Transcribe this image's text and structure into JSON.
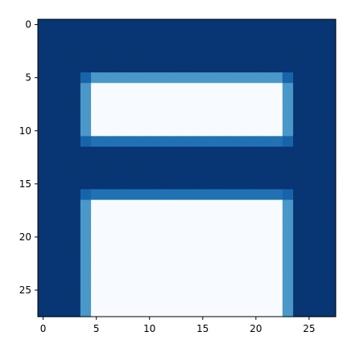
{
  "chart_data": {
    "type": "heatmap",
    "title": "",
    "xlabel": "",
    "ylabel": "",
    "colormap": "Blues",
    "rows": 28,
    "cols": 28,
    "xlim": [
      -0.5,
      27.5
    ],
    "ylim": [
      27.5,
      -0.5
    ],
    "x_ticks": [
      0,
      5,
      10,
      15,
      20,
      25
    ],
    "y_ticks": [
      0,
      5,
      10,
      15,
      20,
      25
    ],
    "x_tick_labels": [
      "0",
      "5",
      "10",
      "15",
      "20",
      "25"
    ],
    "y_tick_labels": [
      "0",
      "5",
      "10",
      "15",
      "20",
      "25"
    ],
    "value_range": [
      0,
      1
    ],
    "background_value": 0.98,
    "regions": [
      {
        "rows": [
          5,
          5
        ],
        "cols": [
          4,
          4
        ],
        "value": 0.8
      },
      {
        "rows": [
          5,
          5
        ],
        "cols": [
          5,
          22
        ],
        "value": 0.6
      },
      {
        "rows": [
          5,
          5
        ],
        "cols": [
          23,
          23
        ],
        "value": 0.8
      },
      {
        "rows": [
          6,
          10
        ],
        "cols": [
          4,
          4
        ],
        "value": 0.6
      },
      {
        "rows": [
          6,
          10
        ],
        "cols": [
          5,
          22
        ],
        "value": 0.0
      },
      {
        "rows": [
          6,
          10
        ],
        "cols": [
          23,
          23
        ],
        "value": 0.6
      },
      {
        "rows": [
          11,
          11
        ],
        "cols": [
          4,
          4
        ],
        "value": 0.8
      },
      {
        "rows": [
          11,
          11
        ],
        "cols": [
          5,
          22
        ],
        "value": 0.75
      },
      {
        "rows": [
          11,
          11
        ],
        "cols": [
          23,
          23
        ],
        "value": 0.8
      },
      {
        "rows": [
          16,
          16
        ],
        "cols": [
          4,
          4
        ],
        "value": 0.8
      },
      {
        "rows": [
          16,
          16
        ],
        "cols": [
          5,
          22
        ],
        "value": 0.75
      },
      {
        "rows": [
          16,
          16
        ],
        "cols": [
          23,
          23
        ],
        "value": 0.8
      },
      {
        "rows": [
          17,
          27
        ],
        "cols": [
          4,
          4
        ],
        "value": 0.6
      },
      {
        "rows": [
          17,
          27
        ],
        "cols": [
          5,
          22
        ],
        "value": 0.0
      },
      {
        "rows": [
          17,
          27
        ],
        "cols": [
          23,
          23
        ],
        "value": 0.6
      }
    ]
  }
}
